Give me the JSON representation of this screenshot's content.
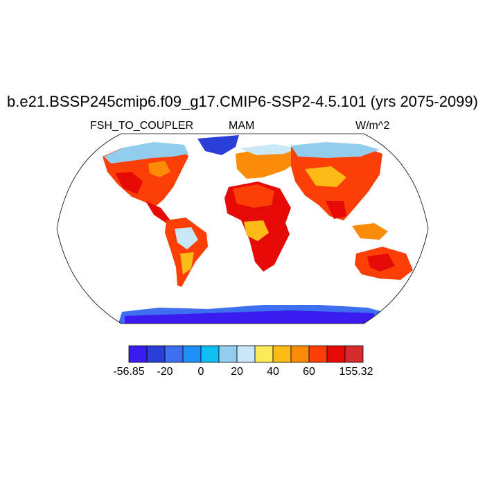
{
  "figure": {
    "title": "b.e21.BSSP245cmip6.f09_g17.CMIP6-SSP2-4.5.101 (yrs 2075-2099)",
    "left_string": "FSH_TO_COUPLER",
    "center_string": "MAM",
    "right_string": "W/m^2"
  },
  "colorbar": {
    "colors": [
      "#3a1cf0",
      "#2c3ed8",
      "#3e6ff0",
      "#1f90f7",
      "#10bff0",
      "#93cdee",
      "#c9e7f7",
      "#fce957",
      "#fcbb16",
      "#fb8c08",
      "#fc3f06",
      "#e60a06",
      "#d52b2f"
    ],
    "labels": [
      "-56.85",
      "-20",
      "0",
      "20",
      "40",
      "60",
      "155.32"
    ]
  }
}
